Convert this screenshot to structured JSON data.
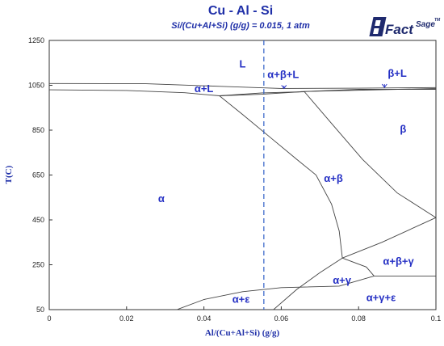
{
  "header": {
    "title": "Cu - Al - Si",
    "subtitle": "Si/(Cu+Al+Si) (g/g) = 0.015, 1 atm"
  },
  "logo": {
    "text_main": "Fact",
    "text_sup": "Sage",
    "tm": "TM",
    "color": "#1f2a6e"
  },
  "chart_data": {
    "type": "phase-diagram",
    "title": "Cu - Al - Si",
    "subtitle": "Si/(Cu+Al+Si) (g/g) = 0.015, 1 atm",
    "xlabel": "Al/(Cu+Al+Si) (g/g)",
    "ylabel": "T(C)",
    "xlim": [
      0,
      0.1
    ],
    "ylim": [
      50,
      1250
    ],
    "xticks": [
      "0",
      "0.02",
      "0.04",
      "0.06",
      "0.08",
      "0.1"
    ],
    "yticks": [
      "50",
      "250",
      "450",
      "650",
      "850",
      "1050",
      "1250"
    ],
    "grid": false,
    "line_color": "#444444",
    "label_color": "#2530c4",
    "boundaries": [
      {
        "name": "liquidus",
        "points": [
          [
            0,
            1058
          ],
          [
            0.025,
            1057
          ],
          [
            0.045,
            1045
          ],
          [
            0.06,
            1036
          ],
          [
            0.08,
            1037
          ],
          [
            0.1,
            1040
          ]
        ]
      },
      {
        "name": "solidus",
        "points": [
          [
            0,
            1030
          ],
          [
            0.02,
            1027
          ],
          [
            0.035,
            1017
          ],
          [
            0.044,
            1003
          ],
          [
            0.055,
            1010
          ],
          [
            0.066,
            1022
          ],
          [
            0.08,
            1032
          ],
          [
            0.1,
            1032
          ]
        ]
      },
      {
        "name": "beta-liquid-solvus",
        "points": [
          [
            0.065,
            1022
          ],
          [
            0.1,
            1036
          ]
        ]
      },
      {
        "name": "alpha-beta-right-top",
        "points": [
          [
            0.044,
            1003
          ],
          [
            0.055,
            1016
          ],
          [
            0.066,
            1021
          ]
        ]
      },
      {
        "name": "alpha/alpha+beta",
        "points": [
          [
            0.044,
            1003
          ],
          [
            0.05,
            920
          ],
          [
            0.057,
            820
          ],
          [
            0.064,
            720
          ],
          [
            0.069,
            650
          ],
          [
            0.073,
            520
          ],
          [
            0.075,
            400
          ],
          [
            0.0758,
            280
          ]
        ]
      },
      {
        "name": "alpha+beta/beta",
        "points": [
          [
            0.066,
            1021
          ],
          [
            0.073,
            880
          ],
          [
            0.081,
            720
          ],
          [
            0.09,
            570
          ],
          [
            0.1,
            460
          ]
        ]
      },
      {
        "name": "eutectoid-line",
        "points": [
          [
            0.0758,
            280
          ],
          [
            0.086,
            350
          ],
          [
            0.1,
            460
          ]
        ]
      },
      {
        "name": "gamma-upper",
        "points": [
          [
            0.0758,
            280
          ],
          [
            0.082,
            240
          ],
          [
            0.084,
            200
          ]
        ]
      },
      {
        "name": "gamma-left",
        "points": [
          [
            0.0758,
            280
          ],
          [
            0.07,
            215
          ],
          [
            0.064,
            140
          ],
          [
            0.058,
            50
          ]
        ]
      },
      {
        "name": "epsilon-boundary",
        "points": [
          [
            0.033,
            50
          ],
          [
            0.04,
            95
          ],
          [
            0.05,
            130
          ],
          [
            0.06,
            148
          ],
          [
            0.075,
            155
          ],
          [
            0.084,
            200
          ],
          [
            0.1,
            200
          ]
        ]
      }
    ],
    "reference_line": {
      "x": 0.0555,
      "style": "dashed",
      "color": "#2f5fc7"
    },
    "regions": [
      {
        "label": "L",
        "x": 0.05,
        "y": 1130
      },
      {
        "label": "α+β+L",
        "x": 0.0605,
        "y": 1082
      },
      {
        "label": "β+L",
        "x": 0.09,
        "y": 1087
      },
      {
        "label": "α+L",
        "x": 0.04,
        "y": 1020
      },
      {
        "label": "β",
        "x": 0.0915,
        "y": 840
      },
      {
        "label": "α+β",
        "x": 0.0735,
        "y": 620
      },
      {
        "label": "α",
        "x": 0.029,
        "y": 530
      },
      {
        "label": "α+β+γ",
        "x": 0.0903,
        "y": 250
      },
      {
        "label": "α+γ",
        "x": 0.0757,
        "y": 165
      },
      {
        "label": "α+ε",
        "x": 0.0496,
        "y": 80
      },
      {
        "label": "α+γ+ε",
        "x": 0.0858,
        "y": 88
      }
    ],
    "arrows": [
      {
        "from": [
          0.0607,
          1048
        ],
        "to": [
          0.0607,
          1036
        ]
      },
      {
        "from": [
          0.0867,
          1055
        ],
        "to": [
          0.0867,
          1041
        ]
      }
    ]
  }
}
